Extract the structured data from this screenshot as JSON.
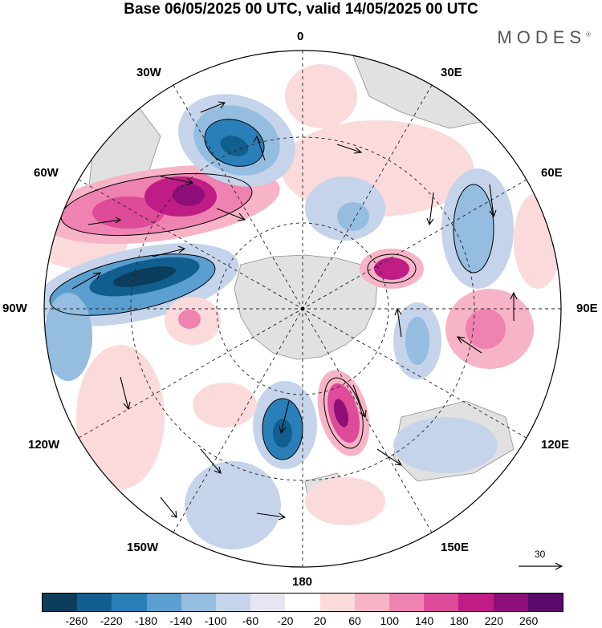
{
  "title": "Base 06/05/2025 00 UTC, valid 14/05/2025 00 UTC",
  "brand": "MODES",
  "brand_mark": "®",
  "longitude_labels": {
    "n0": "0",
    "e30": "30E",
    "e60": "60E",
    "e90": "90E",
    "e120": "120E",
    "e150": "150E",
    "s180": "180",
    "w150": "150W",
    "w120": "120W",
    "w90": "90W",
    "w60": "60W",
    "w30": "30W"
  },
  "vector_scale": "30",
  "colorbar": {
    "colors": [
      "#0b3d5c",
      "#115f8f",
      "#2b7fb8",
      "#5a9fcf",
      "#94bde0",
      "#c5d4ea",
      "#e6e6f2",
      "#ffffff",
      "#fbdadc",
      "#f6b4c6",
      "#ee82b0",
      "#dd4b99",
      "#bf1c86",
      "#8f0f7a",
      "#5a0a6a"
    ],
    "labels": [
      "-260",
      "-220",
      "-180",
      "-140",
      "-100",
      "-60",
      "-20",
      "20",
      "60",
      "100",
      "140",
      "180",
      "220",
      "260"
    ]
  }
}
